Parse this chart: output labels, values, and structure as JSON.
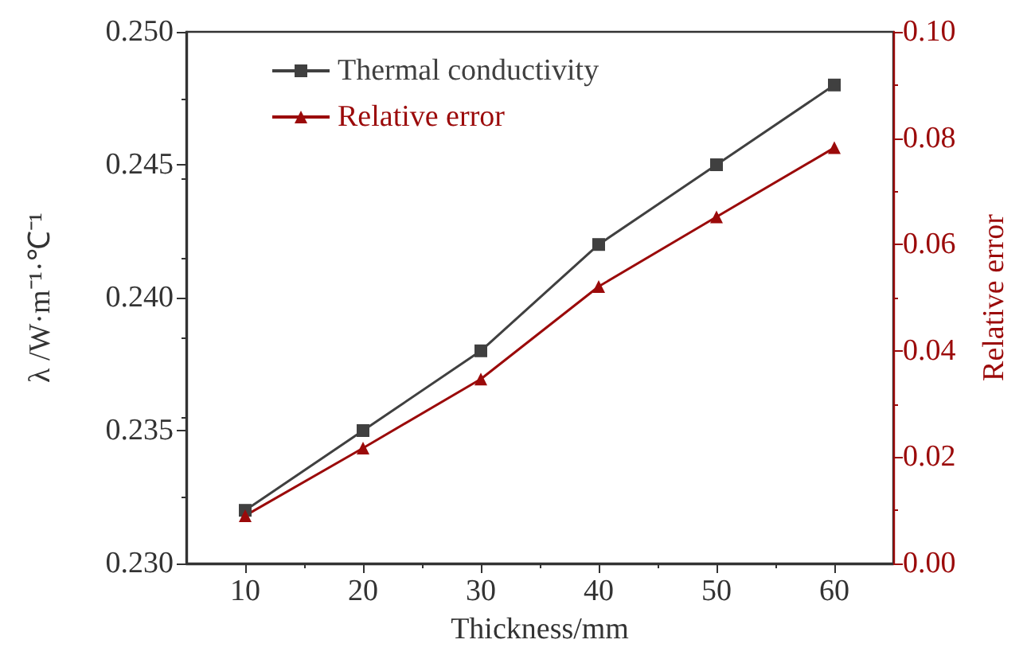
{
  "chart_data": {
    "type": "line",
    "xlabel": "Thickness/mm",
    "ylabel": "λ /W·m⁻¹·℃⁻¹",
    "y2label": "Relative error",
    "x": [
      10,
      20,
      30,
      40,
      50,
      60
    ],
    "series": [
      {
        "name": "Thermal conductivity",
        "color": "#404040",
        "marker": "square",
        "values": [
          0.232,
          0.235,
          0.238,
          0.242,
          0.245,
          0.248
        ]
      },
      {
        "name": "Relative error",
        "color": "#9b0a0a",
        "marker": "triangle",
        "axis": "y2",
        "values": [
          0.009,
          0.0217,
          0.0347,
          0.0521,
          0.0652,
          0.0782
        ]
      }
    ],
    "xlim": [
      5,
      65
    ],
    "xticks": [
      10,
      20,
      30,
      40,
      50,
      60
    ],
    "ylim": [
      0.23,
      0.25
    ],
    "yticks": [
      {
        "value": 0.23,
        "label": "0.230"
      },
      {
        "value": 0.235,
        "label": "0.235"
      },
      {
        "value": 0.24,
        "label": "0.240"
      },
      {
        "value": 0.245,
        "label": "0.245"
      },
      {
        "value": 0.25,
        "label": "0.250"
      }
    ],
    "y2lim": [
      0,
      0.1
    ],
    "y2ticks": [
      {
        "value": 0,
        "label": "0.00"
      },
      {
        "value": 0.02,
        "label": "0.02"
      },
      {
        "value": 0.04,
        "label": "0.04"
      },
      {
        "value": 0.06,
        "label": "0.06"
      },
      {
        "value": 0.08,
        "label": "0.08"
      },
      {
        "value": 0.1,
        "label": "0.10"
      }
    ],
    "legend": "top left",
    "grid": false,
    "line_style": "solid"
  }
}
